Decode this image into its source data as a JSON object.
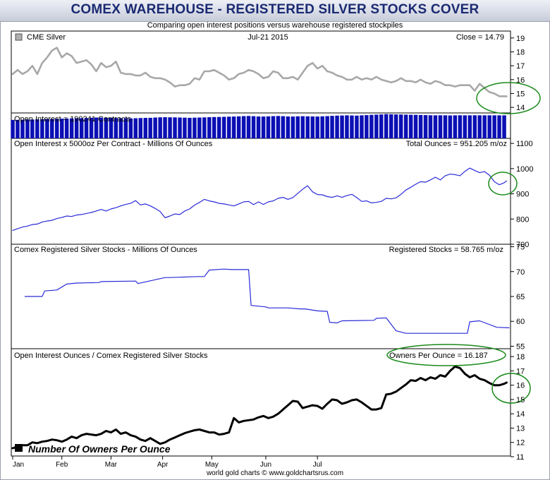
{
  "header": {
    "title": "COMEX WAREHOUSE - REGISTERED SILVER STOCKS COVER",
    "subtitle": "Comparing open interest positions versus warehouse registered stockpiles"
  },
  "footer": {
    "credit": "world gold charts © www.goldchartsrus.com"
  },
  "colors": {
    "banner_text": "#1b2a72",
    "price": "#a8a8a8",
    "oi_bars": "#0b0fb4",
    "ounces": "#2a2ad8",
    "registered": "#2a2ad8",
    "owners": "#000000",
    "highlight": "#1a8a1a"
  },
  "chart_data": [
    {
      "id": "price",
      "type": "line",
      "legend": "CME Silver",
      "date_label": "Jul-21  2015",
      "value_label": "Close = 14.79",
      "ylim": [
        13.6,
        19.5
      ],
      "yticks": [
        14,
        15,
        16,
        17,
        18,
        19
      ],
      "x": [
        0,
        2,
        4,
        6,
        8,
        10,
        12,
        14,
        16,
        18,
        20,
        22,
        24,
        26,
        28,
        30,
        32,
        34,
        36,
        38,
        40,
        42,
        44,
        46,
        48,
        50,
        52,
        54,
        56,
        58,
        60,
        62,
        64,
        66,
        68,
        70,
        72,
        74,
        76,
        78,
        80,
        82,
        84,
        86,
        88,
        90,
        92,
        94,
        96,
        98,
        100,
        102,
        104,
        106,
        108,
        110,
        112,
        114,
        116,
        118,
        120,
        122,
        124,
        126,
        128,
        130,
        132,
        134,
        136,
        138,
        140,
        142,
        144,
        146,
        148,
        150,
        152,
        154,
        156,
        158,
        160,
        162,
        164,
        166,
        168,
        170,
        172,
        174,
        176,
        178,
        180,
        182,
        184,
        186,
        188,
        190,
        192,
        194,
        196,
        198,
        200,
        201
      ],
      "values": [
        16.4,
        16.7,
        16.4,
        16.6,
        17.0,
        16.4,
        17.2,
        17.6,
        18.1,
        18.3,
        17.6,
        17.9,
        17.7,
        17.2,
        17.3,
        17.4,
        17.1,
        16.6,
        17.2,
        16.9,
        17.0,
        17.3,
        16.5,
        16.4,
        16.4,
        16.3,
        16.3,
        16.5,
        16.2,
        16.1,
        16.1,
        16.0,
        15.8,
        15.5,
        15.6,
        15.6,
        15.7,
        16.1,
        16.0,
        16.6,
        16.6,
        16.7,
        16.5,
        16.3,
        16.0,
        16.1,
        16.4,
        16.5,
        16.7,
        16.6,
        16.4,
        16.1,
        16.2,
        16.6,
        16.5,
        16.1,
        16.1,
        16.2,
        16.0,
        16.5,
        17.0,
        17.2,
        16.8,
        17.0,
        16.6,
        16.5,
        16.3,
        16.2,
        16.0,
        16.0,
        16.2,
        16.0,
        16.1,
        16.0,
        16.2,
        16.0,
        15.9,
        15.8,
        15.9,
        16.1,
        15.9,
        15.9,
        15.8,
        16.0,
        15.8,
        15.7,
        15.9,
        15.8,
        15.6,
        15.6,
        15.5,
        15.6,
        15.6,
        15.6,
        15.2,
        15.7,
        15.4,
        15.1,
        15.0,
        14.8,
        14.8,
        14.8
      ]
    },
    {
      "id": "open_interest",
      "type": "bar",
      "label": "Open Interest = 190241 Contracts",
      "ylim": [
        0,
        210000
      ],
      "x": [
        0,
        2,
        4,
        6,
        8,
        10,
        12,
        14,
        16,
        18,
        20,
        22,
        24,
        26,
        28,
        30,
        32,
        34,
        36,
        38,
        40,
        42,
        44,
        46,
        48,
        50,
        52,
        54,
        56,
        58,
        60,
        62,
        64,
        66,
        68,
        70,
        72,
        74,
        76,
        78,
        80,
        82,
        84,
        86,
        88,
        90,
        92,
        94,
        96,
        98,
        100,
        102,
        104,
        106,
        108,
        110,
        112,
        114,
        116,
        118,
        120,
        122,
        124,
        126,
        128,
        130,
        132,
        134,
        136,
        138,
        140,
        142,
        144,
        146,
        148,
        150,
        152,
        154,
        156,
        158,
        160,
        162,
        164,
        166,
        168,
        170,
        172,
        174,
        176,
        178,
        180,
        182,
        184,
        186,
        188,
        190,
        192,
        194,
        196,
        198,
        200
      ],
      "values": [
        152000,
        153000,
        154000,
        155000,
        156000,
        157000,
        158000,
        160000,
        161000,
        162000,
        163000,
        164000,
        165000,
        166000,
        167000,
        168000,
        170000,
        172000,
        171000,
        170000,
        169000,
        168000,
        167000,
        166000,
        165000,
        166000,
        168000,
        169000,
        170000,
        172000,
        174000,
        175000,
        174000,
        173000,
        172000,
        171000,
        170000,
        171000,
        172000,
        173000,
        175000,
        176000,
        177000,
        178000,
        179000,
        180000,
        182000,
        184000,
        185000,
        183000,
        181000,
        180000,
        182000,
        184000,
        185000,
        183000,
        181000,
        180000,
        182000,
        183000,
        182000,
        181000,
        180000,
        182000,
        184000,
        186000,
        188000,
        189000,
        190000,
        189000,
        188000,
        190000,
        192000,
        194000,
        196000,
        198000,
        200000,
        199000,
        198000,
        197000,
        196000,
        195000,
        194000,
        193000,
        192000,
        191000,
        190000,
        191000,
        190000,
        189000,
        190000,
        191000,
        190000,
        190000,
        191000,
        190000,
        190000,
        190000,
        190000,
        190000,
        190241
      ]
    },
    {
      "id": "oi_ounces",
      "type": "line",
      "label": "Open Interest x 5000oz Per Contract - Millions Of Ounces",
      "value_label": "Total Ounces = 951.205 m/oz",
      "ylim": [
        700,
        1120
      ],
      "yticks": [
        700,
        800,
        900,
        1000,
        1100
      ],
      "x": [
        0,
        2,
        4,
        6,
        8,
        10,
        12,
        14,
        16,
        18,
        20,
        22,
        24,
        26,
        28,
        30,
        32,
        34,
        36,
        38,
        40,
        42,
        44,
        46,
        48,
        50,
        52,
        54,
        56,
        58,
        60,
        62,
        64,
        66,
        68,
        70,
        72,
        74,
        76,
        78,
        80,
        82,
        84,
        86,
        88,
        90,
        92,
        94,
        96,
        98,
        100,
        102,
        104,
        106,
        108,
        110,
        112,
        114,
        116,
        118,
        120,
        122,
        124,
        126,
        128,
        130,
        132,
        134,
        136,
        138,
        140,
        142,
        144,
        146,
        148,
        150,
        152,
        154,
        156,
        158,
        160,
        162,
        164,
        166,
        168,
        170,
        172,
        174,
        176,
        178,
        180,
        182,
        184,
        186,
        188,
        190,
        192,
        194,
        196,
        198,
        200,
        201
      ],
      "values": [
        755,
        762,
        768,
        772,
        778,
        780,
        788,
        792,
        795,
        802,
        806,
        812,
        810,
        816,
        818,
        822,
        826,
        832,
        838,
        832,
        840,
        845,
        852,
        858,
        862,
        873,
        856,
        860,
        852,
        842,
        830,
        805,
        812,
        820,
        818,
        832,
        840,
        855,
        866,
        878,
        872,
        868,
        862,
        860,
        856,
        852,
        860,
        868,
        870,
        857,
        868,
        858,
        868,
        872,
        882,
        886,
        878,
        885,
        902,
        918,
        932,
        908,
        897,
        896,
        889,
        886,
        892,
        886,
        893,
        898,
        885,
        870,
        872,
        864,
        866,
        870,
        882,
        880,
        884,
        898,
        915,
        926,
        938,
        948,
        946,
        955,
        966,
        955,
        972,
        978,
        976,
        972,
        989,
        1002,
        993,
        984,
        988,
        974,
        948,
        936,
        944,
        951
      ]
    },
    {
      "id": "registered",
      "type": "line",
      "label": "Comex Registered Silver Stocks - Millions Of Ounces",
      "value_label": "Registered Stocks = 58.765 m/oz",
      "ylim": [
        54.5,
        75.5
      ],
      "yticks": [
        55,
        60,
        65,
        70,
        75
      ],
      "x": [
        5,
        12,
        13,
        18,
        22,
        26,
        35,
        36,
        50,
        51,
        62,
        64,
        75,
        78,
        80,
        86,
        89,
        96,
        97,
        103,
        104,
        112,
        117,
        119,
        124,
        128,
        129,
        132,
        134,
        147,
        148,
        152,
        156,
        160,
        185,
        186,
        190,
        197,
        202
      ],
      "values": [
        65.0,
        65.0,
        66.1,
        66.3,
        67.5,
        67.7,
        67.8,
        68.0,
        68.1,
        67.6,
        68.8,
        68.8,
        69.0,
        69.0,
        70.3,
        70.5,
        70.4,
        70.4,
        63.2,
        62.9,
        62.7,
        62.7,
        62.5,
        62.5,
        62.1,
        62.0,
        59.8,
        59.7,
        60.1,
        60.2,
        60.6,
        60.7,
        58.1,
        57.6,
        57.6,
        59.9,
        60.1,
        58.8,
        58.7
      ]
    },
    {
      "id": "owners_per_ounce",
      "type": "line",
      "label": "Open Interest Ounces / Comex Registered Silver Stocks",
      "value_label": "Owners Per Ounce = 16.187",
      "legend": "Number Of Owners Per Ounce",
      "ylim": [
        11.05,
        18.55
      ],
      "yticks": [
        11,
        12,
        13,
        14,
        15,
        16,
        17,
        18
      ],
      "x": [
        0,
        2,
        4,
        6,
        8,
        10,
        12,
        14,
        16,
        18,
        20,
        22,
        24,
        26,
        28,
        30,
        32,
        34,
        36,
        38,
        40,
        42,
        44,
        46,
        48,
        50,
        52,
        54,
        56,
        58,
        60,
        62,
        64,
        66,
        68,
        70,
        72,
        74,
        76,
        78,
        80,
        82,
        84,
        86,
        88,
        90,
        92,
        94,
        96,
        98,
        100,
        102,
        104,
        106,
        108,
        110,
        112,
        114,
        116,
        118,
        120,
        122,
        124,
        126,
        128,
        130,
        132,
        134,
        136,
        138,
        140,
        142,
        144,
        146,
        148,
        150,
        152,
        154,
        156,
        158,
        160,
        162,
        164,
        166,
        168,
        170,
        172,
        174,
        176,
        178,
        180,
        182,
        184,
        186,
        188,
        190,
        192,
        194,
        196,
        198,
        200,
        201
      ],
      "values": [
        11.6,
        11.7,
        11.8,
        11.8,
        12.0,
        11.95,
        12.05,
        12.1,
        12.2,
        12.15,
        12.05,
        12.2,
        12.4,
        12.3,
        12.5,
        12.6,
        12.55,
        12.5,
        12.6,
        12.8,
        12.7,
        12.9,
        12.6,
        12.7,
        12.5,
        12.4,
        12.2,
        12.1,
        12.3,
        12.1,
        11.9,
        12.0,
        12.2,
        12.35,
        12.5,
        12.65,
        12.75,
        12.85,
        12.9,
        12.8,
        12.7,
        12.7,
        12.55,
        12.6,
        12.7,
        13.7,
        13.4,
        13.5,
        13.55,
        13.6,
        13.75,
        13.85,
        13.7,
        13.8,
        14.0,
        14.3,
        14.6,
        14.9,
        14.85,
        14.4,
        14.5,
        14.6,
        14.55,
        14.35,
        14.7,
        15.0,
        14.95,
        14.7,
        14.8,
        14.95,
        15.0,
        14.8,
        14.55,
        14.3,
        14.3,
        14.4,
        15.35,
        15.4,
        15.55,
        15.8,
        16.05,
        16.35,
        16.3,
        16.5,
        16.35,
        16.55,
        16.45,
        16.7,
        16.6,
        17.0,
        17.3,
        17.2,
        16.8,
        16.55,
        16.7,
        16.45,
        16.35,
        16.15,
        16.0,
        16.0,
        16.1,
        16.187
      ]
    }
  ],
  "x_axis": {
    "tick_labels": [
      "Jan",
      "Feb",
      "Mar",
      "Apr",
      "May",
      "Jun",
      "Jul"
    ],
    "tick_index": [
      0,
      20,
      40,
      61,
      81,
      103,
      124
    ]
  }
}
